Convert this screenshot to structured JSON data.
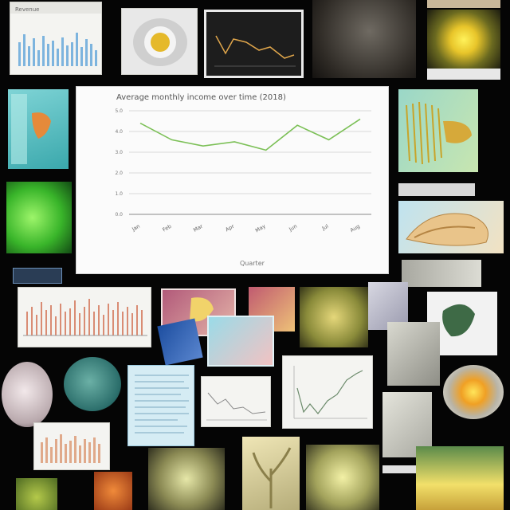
{
  "main_chart": {
    "title_text": "Average monthly income over time (2018)",
    "xlabel_text": "Quarter"
  },
  "chart_data": {
    "type": "line",
    "title": "Average monthly income over time (2018)",
    "xlabel": "Quarter",
    "ylabel": "",
    "categories": [
      "Jan",
      "Feb",
      "Mar",
      "Apr",
      "May",
      "Jun",
      "Jul",
      "Aug"
    ],
    "series": [
      {
        "values": [
          4.4,
          3.6,
          3.3,
          3.5,
          3.1,
          4.3,
          3.6,
          4.6
        ]
      }
    ],
    "y_tick_labels": [
      "0.0",
      "1.0",
      "2.0",
      "3.0",
      "4.0",
      "5.0"
    ],
    "ylim": [
      0,
      5
    ],
    "grid": true,
    "colors": {
      "line": "#7cc057",
      "grid": "#d9d9d9"
    }
  },
  "thumbnails": {
    "bar_card_title": "Revenue"
  }
}
